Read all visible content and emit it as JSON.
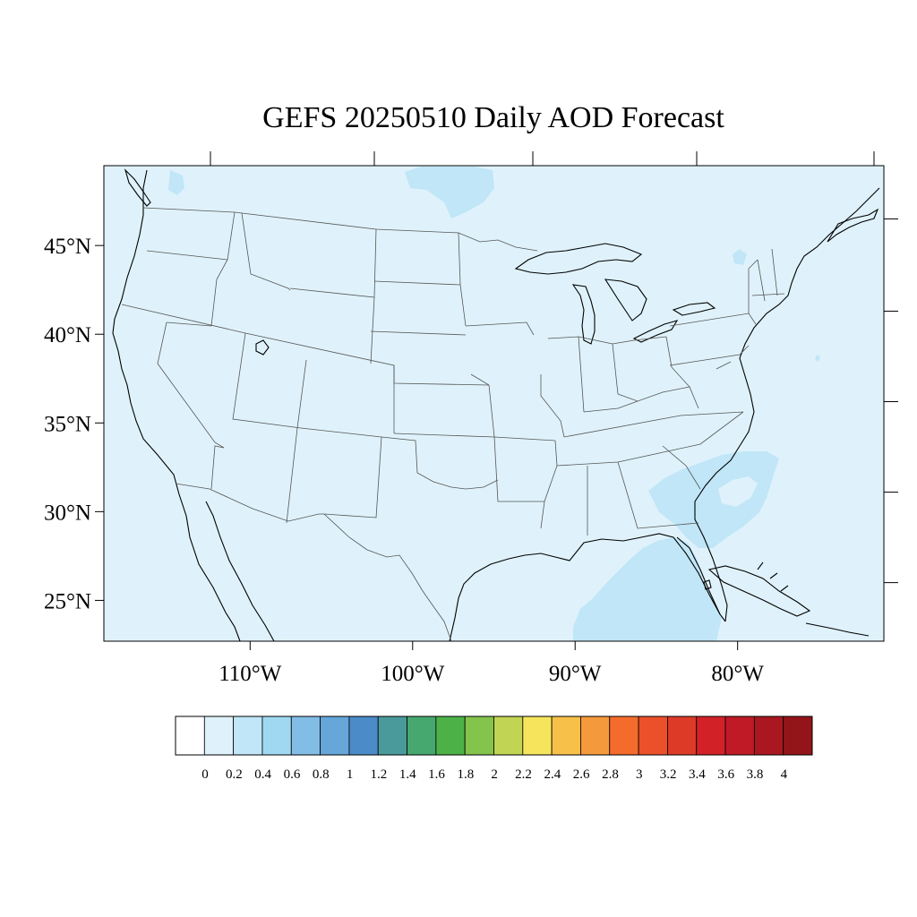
{
  "title": "GEFS 20250510 Daily AOD Forecast",
  "map": {
    "background_color": "#dff2fb",
    "projection": "cylindrical-equidistant",
    "lon_range": [
      -119,
      -71
    ],
    "lat_range": [
      22.7,
      49.5
    ],
    "lat_tick_labels": [
      {
        "value": 45,
        "label": "45°N"
      },
      {
        "value": 40,
        "label": "40°N"
      },
      {
        "value": 35,
        "label": "35°N"
      },
      {
        "value": 30,
        "label": "30°N"
      },
      {
        "value": 25,
        "label": "25°N"
      }
    ],
    "lon_tick_labels": [
      {
        "value": -110,
        "label": "110°W"
      },
      {
        "value": -100,
        "label": "100°W"
      },
      {
        "value": -90,
        "label": "90°W"
      },
      {
        "value": -80,
        "label": "80°W"
      }
    ]
  },
  "colorbar": {
    "colors": [
      "#ffffff",
      "#dff2fb",
      "#c0e6f7",
      "#a0d8f2",
      "#82bde6",
      "#66a6d8",
      "#4a8bc8",
      "#4a9a9c",
      "#46a86e",
      "#4cb248",
      "#84c44c",
      "#c2d454",
      "#f6e55c",
      "#f7c048",
      "#f49a3c",
      "#f46c2c",
      "#ea502a",
      "#dd3a28",
      "#d22228",
      "#bf1a26",
      "#a91820",
      "#941519"
    ],
    "labels": [
      "0",
      "0.2",
      "0.4",
      "0.6",
      "0.8",
      "1",
      "1.2",
      "1.4",
      "1.6",
      "1.8",
      "2",
      "2.2",
      "2.4",
      "2.6",
      "2.8",
      "3",
      "3.2",
      "3.4",
      "3.6",
      "3.8",
      "4"
    ]
  },
  "chart_data": {
    "type": "heatmap",
    "title": "GEFS 20250510 Daily AOD Forecast",
    "variable": "AOD",
    "levels": [
      0,
      0.2,
      0.4,
      0.6,
      0.8,
      1,
      1.2,
      1.4,
      1.6,
      1.8,
      2,
      2.2,
      2.4,
      2.6,
      2.8,
      3,
      3.2,
      3.4,
      3.6,
      3.8,
      4
    ],
    "field_summary": "AOD 0.2–0.4 over most of the domain; 0.4–0.6 patches over the Gulf of Mexico, off the Southeast coast, Georgia/South Carolina, and near Lake Superior",
    "xlim": [
      -119,
      -71
    ],
    "ylim": [
      22.7,
      49.5
    ]
  }
}
